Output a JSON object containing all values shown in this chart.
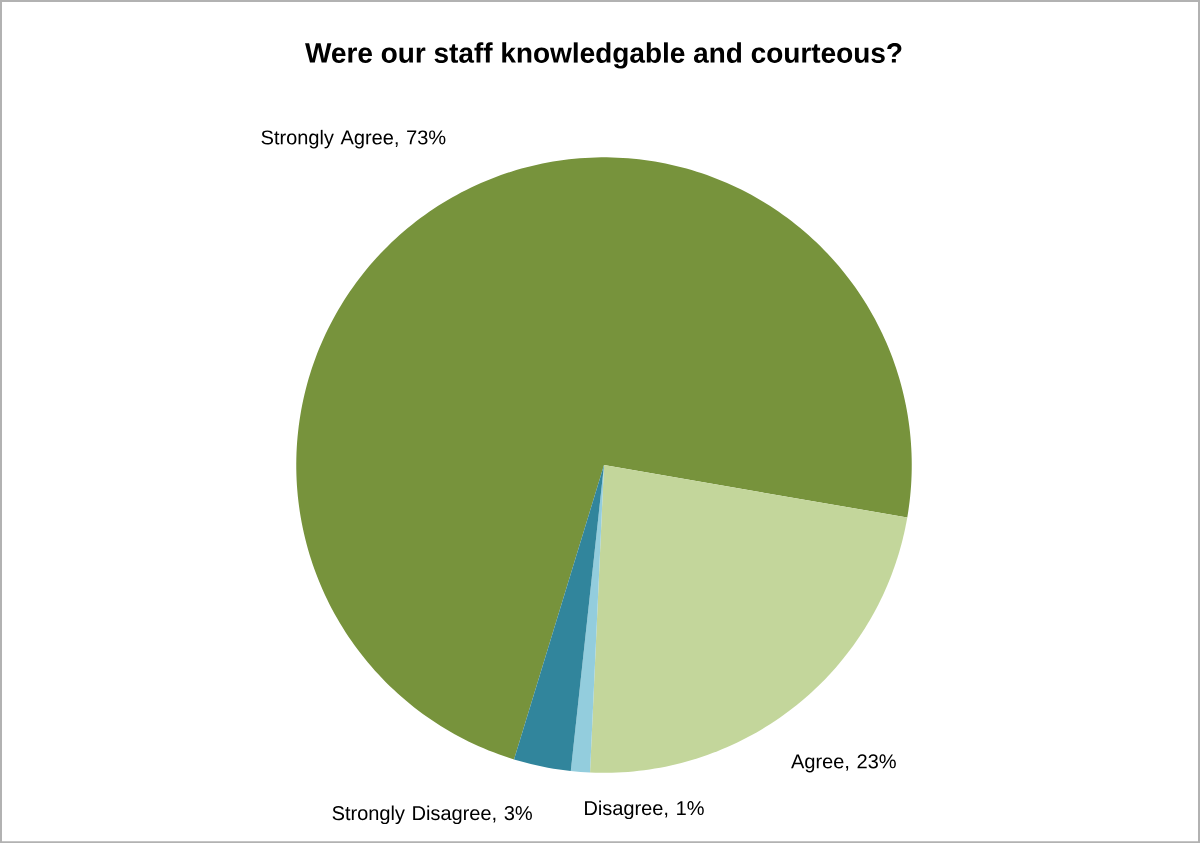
{
  "chart_data": {
    "type": "pie",
    "title": "Were our staff knowledgable and courteous?",
    "categories": [
      "Strongly Agree",
      "Agree",
      "Disagree",
      "Strongly Disagree"
    ],
    "values": [
      73,
      23,
      1,
      3
    ],
    "value_labels": [
      ", 73%",
      ", 23%",
      ", 1%",
      ", 3%"
    ],
    "colors": [
      "#77933c",
      "#c3d69b",
      "#93cddd",
      "#31859c"
    ]
  }
}
